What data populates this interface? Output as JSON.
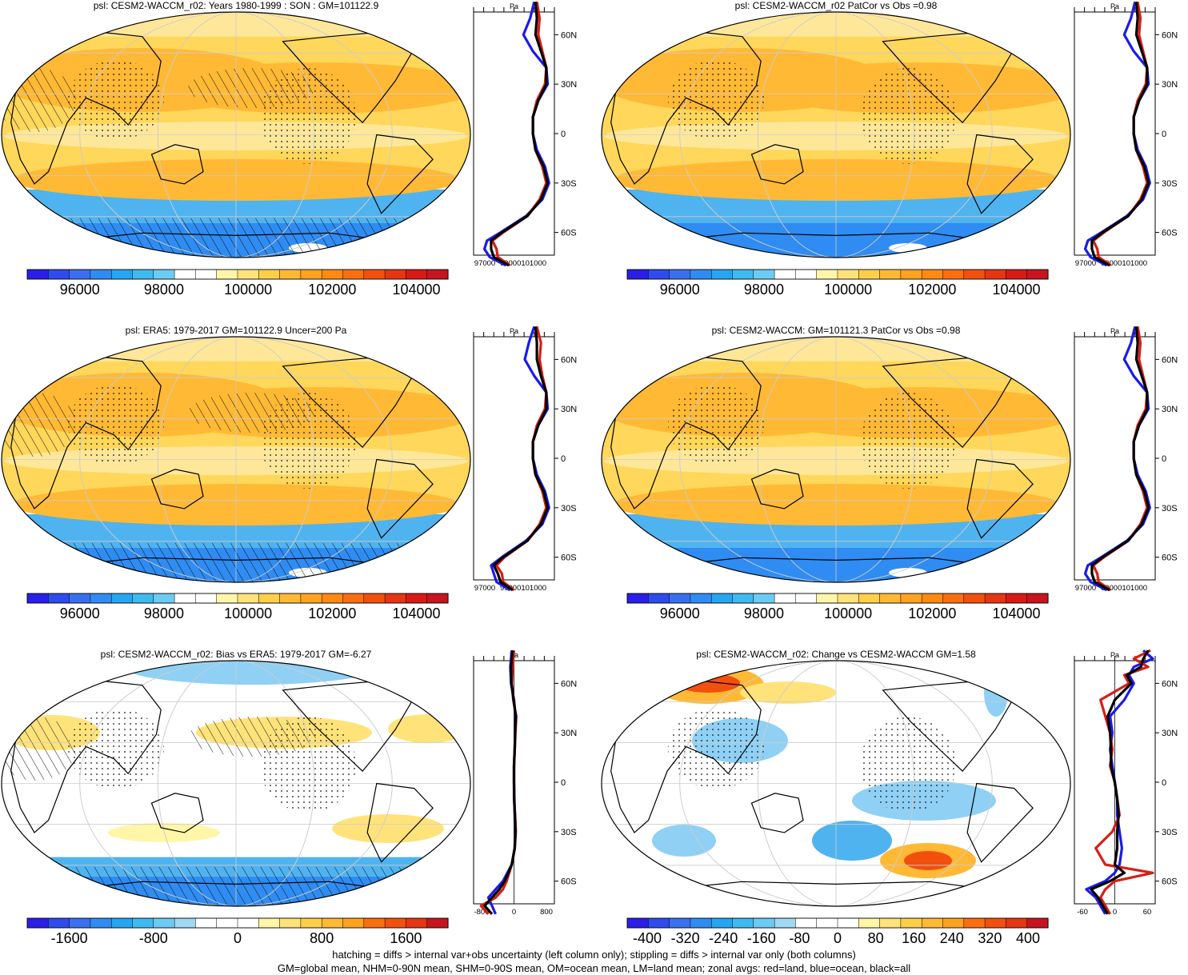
{
  "colors": {
    "abs_scale": [
      "#2a1ee8",
      "#2f4bee",
      "#3a6ff0",
      "#2f8cf2",
      "#26a6f2",
      "#3fbaf0",
      "#6ccbf2",
      "#ffffff",
      "#ffffff",
      "#fff6a8",
      "#ffe37a",
      "#ffcf4a",
      "#ffb934",
      "#ffa21f",
      "#ff8a12",
      "#fb6e10",
      "#f2500e",
      "#e63512",
      "#d81a14",
      "#c8141e"
    ],
    "diff_scale": [
      "#2a1ee8",
      "#2f4bee",
      "#3a6ff0",
      "#2f8cf2",
      "#26a6f2",
      "#3fbaf0",
      "#6ccbf2",
      "#9fd9f4",
      "#ffffff",
      "#ffffff",
      "#ffffff",
      "#fff6a8",
      "#ffe37a",
      "#ffcf4a",
      "#ffb934",
      "#ffa21f",
      "#fb6e10",
      "#f2500e",
      "#e63512",
      "#c8141e"
    ],
    "land": "#d81e14",
    "ocean": "#1a1aee",
    "all": "#000000"
  },
  "chart_data": [
    {
      "type": "heatmap",
      "title": "psl: CESM2-WACCM_r02: Years 1980-1999 : SON : GM=101122.9",
      "colorbar_ticks": [
        "96000",
        "98000",
        "100000",
        "102000",
        "104000"
      ],
      "profile_unit": "Pa",
      "profile_xticks": [
        "97000",
        "99000101000"
      ],
      "lat_ticks": [
        "60N",
        "30N",
        "0",
        "30S",
        "60S"
      ],
      "zonal_profile": {
        "lat": [
          80,
          70,
          60,
          50,
          40,
          30,
          20,
          10,
          0,
          -10,
          -20,
          -30,
          -40,
          -50,
          -60,
          -65,
          -70,
          -75,
          -80
        ],
        "land": [
          101300,
          101500,
          101400,
          101700,
          102000,
          101900,
          101300,
          101000,
          101000,
          101200,
          101700,
          102000,
          101500,
          100600,
          98800,
          98000,
          98300,
          98400,
          99300
        ],
        "ocean": [
          101100,
          100800,
          100300,
          101000,
          102000,
          102100,
          101400,
          101000,
          101000,
          101300,
          101900,
          102200,
          101700,
          100500,
          98600,
          97600,
          97400,
          97800,
          99000
        ],
        "all": [
          101200,
          101300,
          101200,
          101600,
          102000,
          102000,
          101400,
          101000,
          101000,
          101200,
          101800,
          102100,
          101600,
          100600,
          98700,
          97900,
          97900,
          98100,
          99200
        ]
      }
    },
    {
      "type": "heatmap",
      "title": "psl: CESM2-WACCM_r02 PatCor vs Obs =0.98",
      "colorbar_ticks": [
        "96000",
        "98000",
        "100000",
        "102000",
        "104000"
      ],
      "profile_unit": "Pa",
      "profile_xticks": [
        "97000",
        "99000101000"
      ],
      "lat_ticks": [
        "60N",
        "30N",
        "0",
        "30S",
        "60S"
      ],
      "zonal_profile": {
        "lat": [
          80,
          70,
          60,
          50,
          40,
          30,
          20,
          10,
          0,
          -10,
          -20,
          -30,
          -40,
          -50,
          -60,
          -65,
          -70,
          -75,
          -80
        ],
        "land": [
          101300,
          101500,
          101400,
          101700,
          102000,
          101900,
          101300,
          101000,
          101000,
          101200,
          101700,
          102000,
          101500,
          100600,
          98800,
          98000,
          98300,
          98400,
          99300
        ],
        "ocean": [
          101100,
          100800,
          100300,
          101000,
          102000,
          102100,
          101400,
          101000,
          101000,
          101300,
          101900,
          102200,
          101700,
          100500,
          98600,
          97600,
          97400,
          97800,
          99000
        ],
        "all": [
          101200,
          101300,
          101200,
          101600,
          102000,
          102000,
          101400,
          101000,
          101000,
          101200,
          101800,
          102100,
          101600,
          100600,
          98700,
          97900,
          97900,
          98100,
          99200
        ]
      }
    },
    {
      "type": "heatmap",
      "title": "psl: ERA5: 1979-2017 GM=101122.9 Uncer=200 Pa",
      "colorbar_ticks": [
        "96000",
        "98000",
        "100000",
        "102000",
        "104000"
      ],
      "profile_unit": "Pa",
      "profile_xticks": [
        "97000",
        "99000101000"
      ],
      "lat_ticks": [
        "60N",
        "30N",
        "0",
        "30S",
        "60S"
      ],
      "zonal_profile": {
        "lat": [
          80,
          70,
          60,
          50,
          40,
          30,
          20,
          10,
          0,
          -10,
          -20,
          -30,
          -40,
          -50,
          -60,
          -65,
          -70,
          -75,
          -80
        ],
        "land": [
          101300,
          101600,
          101500,
          101700,
          102000,
          101900,
          101300,
          101000,
          101000,
          101200,
          101700,
          102000,
          101500,
          100600,
          98900,
          98300,
          98700,
          98800,
          99600
        ],
        "ocean": [
          101100,
          100700,
          100400,
          101100,
          102000,
          102100,
          101400,
          101000,
          101000,
          101300,
          101900,
          102200,
          101700,
          100500,
          98700,
          97900,
          98100,
          98300,
          99300
        ],
        "all": [
          101200,
          101300,
          101300,
          101600,
          102000,
          102000,
          101400,
          101000,
          101000,
          101200,
          101800,
          102100,
          101600,
          100600,
          98800,
          98100,
          98400,
          98600,
          99500
        ]
      }
    },
    {
      "type": "heatmap",
      "title": "psl: CESM2-WACCM: GM=101121.3 PatCor vs Obs =0.98",
      "colorbar_ticks": [
        "96000",
        "98000",
        "100000",
        "102000",
        "104000"
      ],
      "profile_unit": "Pa",
      "profile_xticks": [
        "97000",
        "99000101000"
      ],
      "lat_ticks": [
        "60N",
        "30N",
        "0",
        "30S",
        "60S"
      ],
      "zonal_profile": {
        "lat": [
          80,
          70,
          60,
          50,
          40,
          30,
          20,
          10,
          0,
          -10,
          -20,
          -30,
          -40,
          -50,
          -60,
          -65,
          -70,
          -75,
          -80
        ],
        "land": [
          101300,
          101500,
          101400,
          101700,
          102000,
          101900,
          101300,
          101000,
          101000,
          101200,
          101700,
          102000,
          101500,
          100600,
          98800,
          98000,
          98300,
          98400,
          99300
        ],
        "ocean": [
          101100,
          100800,
          100300,
          101000,
          102000,
          102100,
          101400,
          101000,
          101000,
          101300,
          101900,
          102200,
          101700,
          100500,
          98600,
          97600,
          97400,
          97800,
          99000
        ],
        "all": [
          101200,
          101300,
          101200,
          101600,
          102000,
          102000,
          101400,
          101000,
          101000,
          101200,
          101800,
          102100,
          101600,
          100600,
          98700,
          97900,
          97900,
          98100,
          99200
        ]
      }
    },
    {
      "type": "heatmap",
      "title": "psl: CESM2-WACCM_r02: Bias vs ERA5: 1979-2017  GM=-6.27",
      "colorbar_ticks": [
        "-1600",
        "-800",
        "0",
        "800",
        "1600"
      ],
      "profile_unit": "Pa",
      "profile_xticks": [
        "-800",
        "0",
        "800"
      ],
      "lat_ticks": [
        "60N",
        "30N",
        "0",
        "30S",
        "60S"
      ],
      "zonal_profile": {
        "lat": [
          80,
          70,
          60,
          50,
          40,
          30,
          20,
          10,
          0,
          -10,
          -20,
          -30,
          -40,
          -50,
          -60,
          -65,
          -70,
          -75,
          -80
        ],
        "land": [
          0,
          -40,
          -60,
          -20,
          60,
          40,
          20,
          0,
          0,
          0,
          30,
          50,
          20,
          -60,
          -200,
          -300,
          -500,
          -900,
          -700
        ],
        "ocean": [
          -60,
          -100,
          -80,
          0,
          40,
          30,
          20,
          0,
          0,
          10,
          20,
          30,
          20,
          -60,
          -300,
          -500,
          -700,
          -600,
          -500
        ],
        "all": [
          -40,
          -80,
          -70,
          -10,
          50,
          30,
          20,
          0,
          0,
          5,
          25,
          40,
          20,
          -60,
          -250,
          -400,
          -600,
          -800,
          -600
        ]
      }
    },
    {
      "type": "heatmap",
      "title": "psl: CESM2-WACCM_r02: Change vs CESM2-WACCM GM=1.58",
      "colorbar_ticks": [
        "-400",
        "-320",
        "-240",
        "-160",
        "-80",
        "0",
        "80",
        "160",
        "240",
        "320",
        "400"
      ],
      "profile_unit": "Pa",
      "profile_xticks": [
        "-60",
        "0",
        "60"
      ],
      "lat_ticks": [
        "60N",
        "30N",
        "0",
        "30S",
        "60S"
      ],
      "zonal_profile": {
        "lat": [
          80,
          75,
          70,
          65,
          60,
          50,
          40,
          30,
          20,
          10,
          0,
          -10,
          -20,
          -30,
          -40,
          -50,
          -55,
          -60,
          -65,
          -70,
          -80
        ],
        "land": [
          75,
          40,
          70,
          20,
          30,
          -30,
          -20,
          -10,
          -5,
          -10,
          0,
          5,
          10,
          -5,
          -40,
          -20,
          80,
          0,
          -20,
          -30,
          -10
        ],
        "ocean": [
          60,
          80,
          40,
          30,
          40,
          20,
          -10,
          -5,
          -10,
          -5,
          0,
          5,
          5,
          10,
          15,
          10,
          0,
          -20,
          -60,
          -40,
          -20
        ],
        "all": [
          70,
          60,
          55,
          25,
          35,
          0,
          -15,
          -10,
          -8,
          -8,
          0,
          5,
          8,
          5,
          5,
          0,
          20,
          -10,
          -50,
          -35,
          -15
        ]
      }
    }
  ],
  "footnote": {
    "line1": "hatching = diffs > internal var+obs uncertainty (left column only); stippling = diffs > internal var only (both columns)",
    "line2": "GM=global mean, NHM=0-90N mean, SHM=0-90S mean, OM=ocean mean, LM=land mean; zonal avgs: red=land, blue=ocean, black=all"
  }
}
